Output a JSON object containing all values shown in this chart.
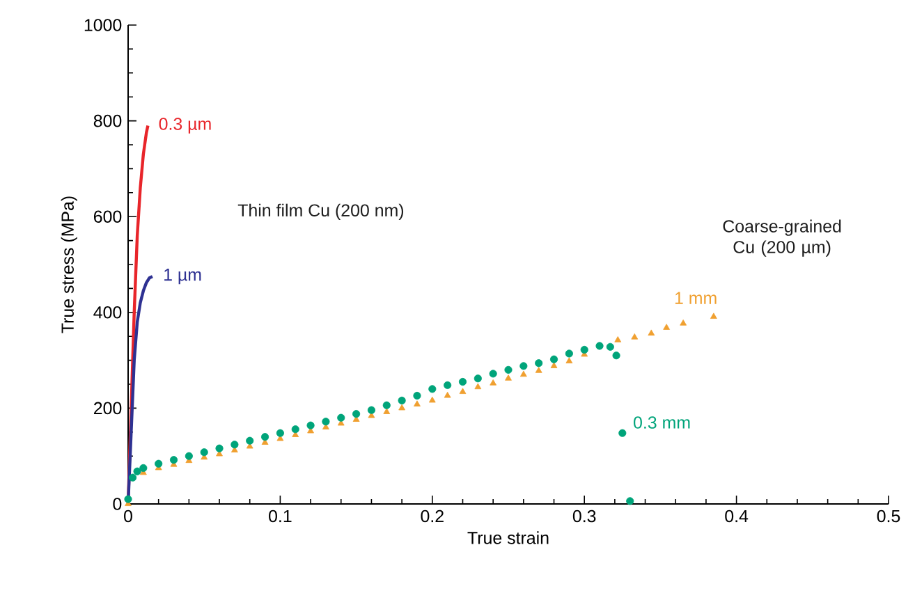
{
  "chart_data": {
    "type": "line",
    "xlabel": "True strain",
    "ylabel": "True stress (MPa)",
    "xlim": [
      0,
      0.5
    ],
    "ylim": [
      0,
      1000
    ],
    "xticks": [
      0,
      0.1,
      0.2,
      0.3,
      0.4,
      0.5
    ],
    "yticks": [
      0,
      200,
      400,
      600,
      800,
      1000
    ],
    "grid": false,
    "annotations": [
      "Thin film Cu (200 nm)",
      "Coarse-grained Cu (200 µm)"
    ],
    "series": [
      {
        "name": "0.3 µm",
        "color": "#e8252a",
        "marker": "none",
        "x": [
          0,
          0.001,
          0.002,
          0.004,
          0.006,
          0.008,
          0.01,
          0.012,
          0.013
        ],
        "values": [
          0,
          100,
          200,
          400,
          560,
          660,
          730,
          775,
          790
        ]
      },
      {
        "name": "1 µm",
        "color": "#2e3192",
        "marker": "none",
        "x": [
          0,
          0.002,
          0.004,
          0.006,
          0.008,
          0.01,
          0.012,
          0.014,
          0.016
        ],
        "values": [
          0,
          150,
          300,
          380,
          420,
          445,
          462,
          472,
          475
        ]
      },
      {
        "name": "1 mm",
        "type": "scatter",
        "color": "#f0a030",
        "marker": "triangle",
        "x": [
          0,
          0.004,
          0.01,
          0.02,
          0.03,
          0.04,
          0.05,
          0.06,
          0.07,
          0.08,
          0.09,
          0.1,
          0.11,
          0.12,
          0.13,
          0.14,
          0.15,
          0.16,
          0.17,
          0.18,
          0.19,
          0.2,
          0.21,
          0.22,
          0.23,
          0.24,
          0.25,
          0.26,
          0.27,
          0.28,
          0.29,
          0.3,
          0.311,
          0.322,
          0.333,
          0.344,
          0.354,
          0.365,
          0.385
        ],
        "values": [
          0,
          null,
          65,
          75,
          82,
          90,
          97,
          104,
          112,
          120,
          128,
          136,
          144,
          152,
          160,
          168,
          176,
          184,
          192,
          200,
          208,
          216,
          226,
          234,
          244,
          252,
          262,
          270,
          278,
          288,
          298,
          312,
          null,
          342,
          348,
          356,
          368,
          377,
          391
        ]
      },
      {
        "name": "0.3 mm",
        "type": "scatter",
        "color": "#00a47a",
        "marker": "circle",
        "x": [
          0,
          0.003,
          0.006,
          0.01,
          0.02,
          0.03,
          0.04,
          0.05,
          0.06,
          0.07,
          0.08,
          0.09,
          0.1,
          0.11,
          0.12,
          0.13,
          0.14,
          0.15,
          0.16,
          0.17,
          0.18,
          0.19,
          0.2,
          0.21,
          0.22,
          0.23,
          0.24,
          0.25,
          0.26,
          0.27,
          0.28,
          0.29,
          0.3,
          0.31,
          0.317,
          0.321,
          0.325,
          0.33
        ],
        "values": [
          10,
          55,
          68,
          75,
          84,
          92,
          100,
          108,
          116,
          124,
          132,
          140,
          148,
          156,
          164,
          172,
          180,
          188,
          196,
          206,
          216,
          226,
          240,
          248,
          255,
          262,
          272,
          280,
          288,
          294,
          302,
          314,
          322,
          330,
          328,
          310,
          148,
          6
        ]
      }
    ]
  }
}
